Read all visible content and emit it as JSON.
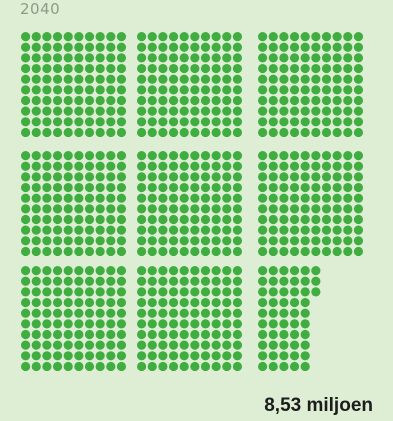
{
  "year_label": "2040",
  "total_label": "8,53 miljoen",
  "dot_color": "#3fad3f",
  "background_color": "#deeed5",
  "chart_data": {
    "type": "waffle",
    "title": "",
    "units_per_dot": 0.01,
    "units_per_block": 1,
    "block_values": [
      1,
      1,
      1,
      1,
      1,
      1,
      1,
      1,
      0.53
    ],
    "total_value": 8.53,
    "total_unit": "miljoen"
  }
}
